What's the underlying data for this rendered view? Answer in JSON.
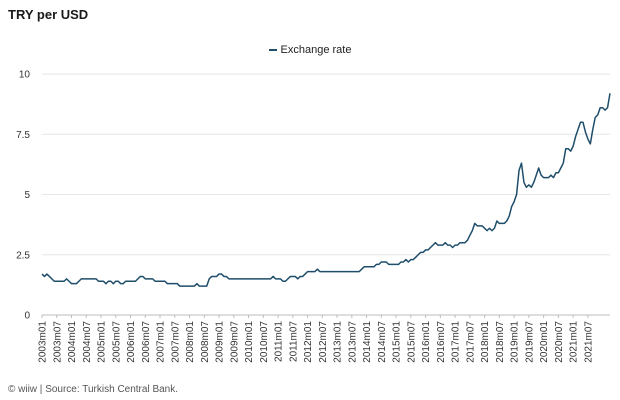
{
  "chart_data": {
    "type": "line",
    "title": "TRY per USD",
    "xlabel": "",
    "ylabel": "",
    "ylim": [
      0,
      10
    ],
    "yticks": [
      {
        "v": 0,
        "label": "0"
      },
      {
        "v": 2.5,
        "label": "2.5"
      },
      {
        "v": 5,
        "label": "5"
      },
      {
        "v": 7.5,
        "label": "7.5"
      },
      {
        "v": 10,
        "label": "10"
      }
    ],
    "grid": true,
    "legend_position": "top-center",
    "x_tick_labels": [
      "2003m01",
      "2003m07",
      "2004m01",
      "2004m07",
      "2005m01",
      "2005m07",
      "2006m01",
      "2006m07",
      "2007m01",
      "2007m07",
      "2008m01",
      "2008m07",
      "2009m01",
      "2009m07",
      "2010m01",
      "2010m07",
      "2011m01",
      "2011m07",
      "2012m01",
      "2012m07",
      "2013m01",
      "2013m07",
      "2014m01",
      "2014m07",
      "2015m01",
      "2015m07",
      "2016m01",
      "2016m07",
      "2017m01",
      "2017m07",
      "2018m01",
      "2018m07",
      "2019m01",
      "2019m07",
      "2020m01",
      "2020m07",
      "2021m01",
      "2021m07"
    ],
    "series": [
      {
        "name": "Exchange rate",
        "color": "#1f4e6b",
        "values": [
          1.7,
          1.6,
          1.7,
          1.6,
          1.5,
          1.4,
          1.4,
          1.4,
          1.4,
          1.4,
          1.5,
          1.4,
          1.3,
          1.3,
          1.3,
          1.4,
          1.5,
          1.5,
          1.5,
          1.5,
          1.5,
          1.5,
          1.5,
          1.4,
          1.4,
          1.4,
          1.3,
          1.4,
          1.4,
          1.3,
          1.4,
          1.4,
          1.3,
          1.3,
          1.4,
          1.4,
          1.4,
          1.4,
          1.4,
          1.5,
          1.6,
          1.6,
          1.5,
          1.5,
          1.5,
          1.5,
          1.4,
          1.4,
          1.4,
          1.4,
          1.4,
          1.3,
          1.3,
          1.3,
          1.3,
          1.3,
          1.2,
          1.2,
          1.2,
          1.2,
          1.2,
          1.2,
          1.2,
          1.3,
          1.2,
          1.2,
          1.2,
          1.2,
          1.5,
          1.6,
          1.6,
          1.6,
          1.7,
          1.7,
          1.6,
          1.6,
          1.5,
          1.5,
          1.5,
          1.5,
          1.5,
          1.5,
          1.5,
          1.5,
          1.5,
          1.5,
          1.5,
          1.5,
          1.5,
          1.5,
          1.5,
          1.5,
          1.5,
          1.5,
          1.6,
          1.5,
          1.5,
          1.5,
          1.4,
          1.4,
          1.5,
          1.6,
          1.6,
          1.6,
          1.5,
          1.6,
          1.6,
          1.7,
          1.8,
          1.8,
          1.8,
          1.8,
          1.9,
          1.8,
          1.8,
          1.8,
          1.8,
          1.8,
          1.8,
          1.8,
          1.8,
          1.8,
          1.8,
          1.8,
          1.8,
          1.8,
          1.8,
          1.8,
          1.8,
          1.8,
          1.9,
          2.0,
          2.0,
          2.0,
          2.0,
          2.0,
          2.1,
          2.1,
          2.2,
          2.2,
          2.2,
          2.1,
          2.1,
          2.1,
          2.1,
          2.1,
          2.2,
          2.2,
          2.3,
          2.2,
          2.3,
          2.3,
          2.4,
          2.5,
          2.6,
          2.6,
          2.7,
          2.7,
          2.8,
          2.9,
          3.0,
          2.9,
          2.9,
          2.9,
          3.0,
          2.9,
          2.9,
          2.8,
          2.9,
          2.9,
          3.0,
          3.0,
          3.0,
          3.1,
          3.3,
          3.5,
          3.8,
          3.7,
          3.7,
          3.7,
          3.6,
          3.5,
          3.6,
          3.5,
          3.6,
          3.9,
          3.8,
          3.8,
          3.8,
          3.9,
          4.1,
          4.5,
          4.7,
          5.0,
          6.0,
          6.3,
          5.5,
          5.3,
          5.4,
          5.3,
          5.5,
          5.8,
          6.1,
          5.8,
          5.7,
          5.7,
          5.7,
          5.8,
          5.7,
          5.9,
          5.9,
          6.1,
          6.3,
          6.9,
          6.9,
          6.8,
          7.0,
          7.4,
          7.7,
          8.0,
          8.0,
          7.6,
          7.3,
          7.1,
          7.7,
          8.2,
          8.3,
          8.6,
          8.6,
          8.5,
          8.6,
          9.2
        ]
      }
    ]
  },
  "footer": "© wiiw | Source: Turkish Central Bank."
}
